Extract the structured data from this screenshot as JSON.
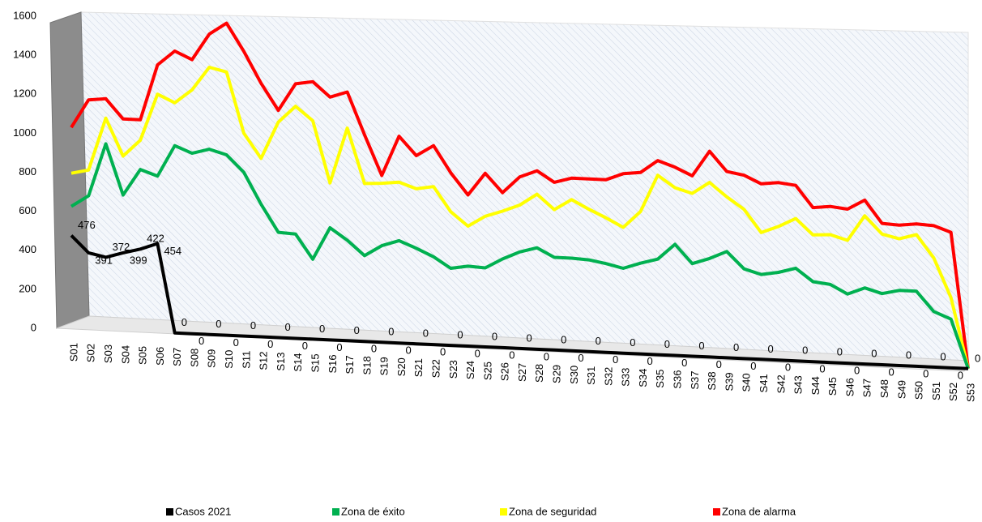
{
  "chart_data": {
    "type": "line",
    "categories": [
      "S01",
      "S02",
      "S03",
      "S04",
      "S05",
      "S06",
      "S07",
      "S08",
      "S09",
      "S10",
      "S11",
      "S12",
      "S13",
      "S14",
      "S15",
      "S16",
      "S17",
      "S18",
      "S19",
      "S20",
      "S21",
      "S22",
      "S23",
      "S24",
      "S25",
      "S26",
      "S27",
      "S28",
      "S29",
      "S30",
      "S31",
      "S32",
      "S33",
      "S34",
      "S35",
      "S36",
      "S37",
      "S38",
      "S39",
      "S40",
      "S41",
      "S42",
      "S43",
      "S44",
      "S45",
      "S46",
      "S47",
      "S48",
      "S49",
      "S50",
      "S51",
      "S52",
      "S53"
    ],
    "series": [
      {
        "name": "Casos 2021",
        "color": "#000000",
        "data_labels": true,
        "values": [
          476,
          391,
          372,
          399,
          422,
          454,
          0,
          0,
          0,
          0,
          0,
          0,
          0,
          0,
          0,
          0,
          0,
          0,
          0,
          0,
          0,
          0,
          0,
          0,
          0,
          0,
          0,
          0,
          0,
          0,
          0,
          0,
          0,
          0,
          0,
          0,
          0,
          0,
          0,
          0,
          0,
          0,
          0,
          0,
          0,
          0,
          0,
          0,
          0,
          0,
          0,
          0,
          0
        ]
      },
      {
        "name": "Zona de éxito",
        "color": "#00b050",
        "values": [
          625,
          683,
          954,
          695,
          830,
          800,
          960,
          925,
          950,
          925,
          840,
          680,
          540,
          535,
          410,
          575,
          515,
          440,
          495,
          525,
          490,
          450,
          395,
          410,
          405,
          455,
          495,
          520,
          475,
          475,
          470,
          455,
          435,
          465,
          490,
          570,
          475,
          505,
          545,
          460,
          435,
          450,
          475,
          410,
          400,
          355,
          390,
          365,
          385,
          385,
          285,
          250,
          0
        ]
      },
      {
        "name": "Zona de seguridad",
        "color": "#ffff00",
        "values": [
          795,
          815,
          1085,
          895,
          980,
          1220,
          1180,
          1250,
          1370,
          1350,
          1040,
          915,
          1105,
          1190,
          1120,
          805,
          1090,
          810,
          815,
          825,
          795,
          810,
          685,
          615,
          670,
          700,
          735,
          795,
          720,
          775,
          730,
          690,
          645,
          730,
          920,
          860,
          835,
          895,
          825,
          765,
          650,
          685,
          730,
          650,
          655,
          630,
          760,
          670,
          650,
          675,
          560,
          360,
          0
        ]
      },
      {
        "name": "Zona de alarma",
        "color": "#ff0000",
        "values": [
          1030,
          1175,
          1185,
          1085,
          1085,
          1370,
          1445,
          1405,
          1540,
          1600,
          1460,
          1300,
          1165,
          1305,
          1320,
          1245,
          1275,
          1060,
          855,
          1060,
          965,
          1020,
          885,
          775,
          890,
          795,
          880,
          915,
          860,
          885,
          885,
          885,
          920,
          930,
          995,
          965,
          925,
          1055,
          955,
          940,
          900,
          910,
          900,
          790,
          800,
          790,
          840,
          725,
          720,
          730,
          725,
          695,
          0
        ]
      }
    ],
    "ylim": [
      0,
      1600
    ],
    "yticks": [
      0,
      200,
      400,
      600,
      800,
      1000,
      1200,
      1400,
      1600
    ],
    "legend": "bottom"
  }
}
